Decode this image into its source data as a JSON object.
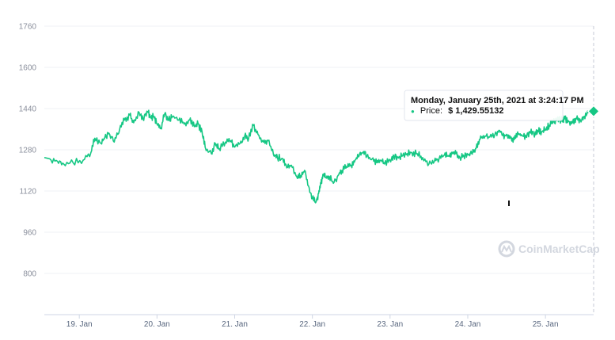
{
  "chart_data": {
    "type": "line",
    "ylim": [
      640,
      1760
    ],
    "yticks": [
      800,
      960,
      1120,
      1280,
      1440,
      1600,
      1760
    ],
    "x_range": [
      18.55,
      25.62
    ],
    "x_ticks": [
      {
        "x": 19,
        "label": "19. Jan"
      },
      {
        "x": 20,
        "label": "20. Jan"
      },
      {
        "x": 21,
        "label": "21. Jan"
      },
      {
        "x": 22,
        "label": "22. Jan"
      },
      {
        "x": 23,
        "label": "23. Jan"
      },
      {
        "x": 24,
        "label": "24. Jan"
      },
      {
        "x": 25,
        "label": "25. Jan"
      }
    ],
    "grid": true,
    "series": [
      {
        "color": "#16c784",
        "x": [
          18.55,
          18.62,
          18.72,
          18.8,
          18.92,
          19.05,
          19.15,
          19.2,
          19.28,
          19.33,
          19.38,
          19.45,
          19.52,
          19.58,
          19.65,
          19.7,
          19.77,
          19.82,
          19.88,
          19.92,
          19.96,
          20.0,
          20.05,
          20.1,
          20.15,
          20.2,
          20.28,
          20.35,
          20.42,
          20.48,
          20.53,
          20.58,
          20.62,
          20.7,
          20.75,
          20.8,
          20.88,
          20.95,
          21.0,
          21.07,
          21.13,
          21.18,
          21.24,
          21.3,
          21.37,
          21.43,
          21.5,
          21.55,
          21.62,
          21.67,
          21.73,
          21.8,
          21.85,
          21.9,
          21.95,
          22.0,
          22.05,
          22.08,
          22.11,
          22.14,
          22.18,
          22.22,
          22.27,
          22.33,
          22.38,
          22.44,
          22.5,
          22.55,
          22.6,
          22.65,
          22.7,
          22.77,
          22.83,
          22.88,
          22.93,
          23.0,
          23.05,
          23.1,
          23.15,
          23.22,
          23.28,
          23.35,
          23.42,
          23.5,
          23.57,
          23.63,
          23.7,
          23.75,
          23.8,
          23.85,
          23.9,
          23.95,
          24.0,
          24.05,
          24.1,
          24.15,
          24.2,
          24.27,
          24.35,
          24.4,
          24.45,
          24.5,
          24.55,
          24.6,
          24.65,
          24.7,
          24.75,
          24.8,
          24.85,
          24.9,
          24.95,
          25.0,
          25.05,
          25.1,
          25.15,
          25.2,
          25.25,
          25.3,
          25.35,
          25.4,
          25.45,
          25.5,
          25.55,
          25.62
        ],
        "y": [
          1250,
          1245,
          1235,
          1225,
          1230,
          1240,
          1270,
          1325,
          1305,
          1330,
          1345,
          1310,
          1360,
          1395,
          1415,
          1385,
          1425,
          1400,
          1428,
          1405,
          1410,
          1380,
          1365,
          1420,
          1395,
          1410,
          1395,
          1380,
          1395,
          1370,
          1380,
          1350,
          1290,
          1265,
          1305,
          1285,
          1310,
          1315,
          1290,
          1305,
          1335,
          1325,
          1375,
          1340,
          1310,
          1315,
          1260,
          1250,
          1245,
          1210,
          1220,
          1175,
          1180,
          1200,
          1140,
          1090,
          1080,
          1110,
          1150,
          1180,
          1170,
          1175,
          1150,
          1180,
          1200,
          1215,
          1220,
          1240,
          1255,
          1270,
          1255,
          1245,
          1230,
          1240,
          1225,
          1240,
          1255,
          1250,
          1255,
          1265,
          1270,
          1265,
          1250,
          1225,
          1235,
          1245,
          1260,
          1255,
          1265,
          1265,
          1250,
          1255,
          1260,
          1265,
          1285,
          1320,
          1335,
          1330,
          1340,
          1355,
          1335,
          1340,
          1325,
          1320,
          1340,
          1335,
          1330,
          1350,
          1340,
          1355,
          1350,
          1360,
          1375,
          1390,
          1400,
          1395,
          1400,
          1390,
          1385,
          1400,
          1395,
          1410,
          1425,
          1429.55
        ]
      }
    ],
    "tooltip": {
      "title": "Monday, January 25th, 2021 at 3:24:17 PM",
      "bullet": "●",
      "label": "Price:",
      "value": "$ 1,429.55132"
    },
    "watermark": "CoinMarketCap"
  }
}
